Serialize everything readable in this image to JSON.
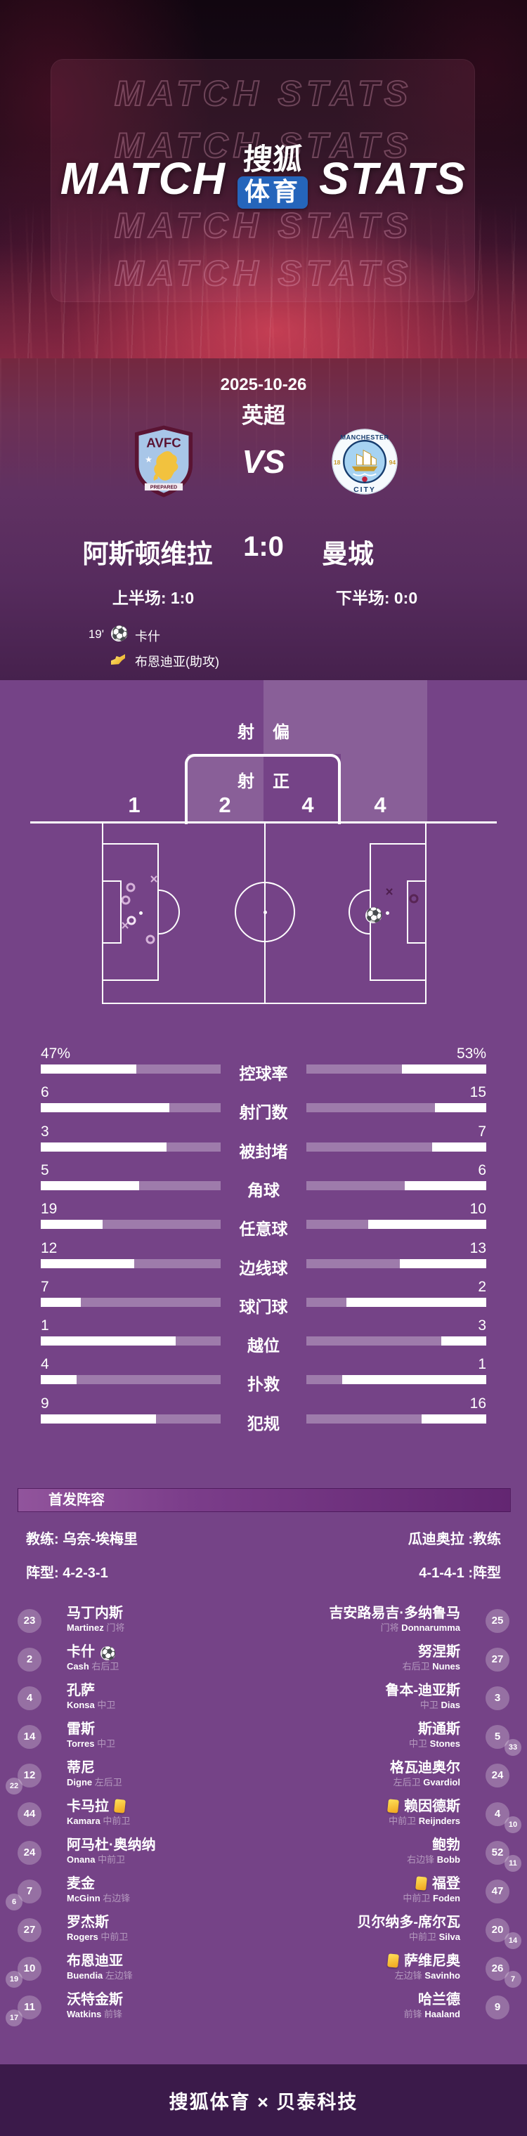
{
  "hero": {
    "watermark": "MATCH STATS",
    "title_left": "MATCH",
    "title_right": "STATS",
    "logo_top": "搜狐",
    "logo_bottom": "体育"
  },
  "match": {
    "date": "2025-10-26",
    "league": "英超",
    "vs": "VS",
    "home_name": "阿斯顿维拉",
    "away_name": "曼城",
    "score": "1:0",
    "half1": "上半场: 1:0",
    "half2": "下半场: 0:0",
    "home_badge": {
      "abbr": "AVFC",
      "banner": "PREPARED"
    },
    "away_badge": {
      "top": "MANCHESTER",
      "bottom": "CITY",
      "year_left": "18",
      "year_right": "94"
    },
    "events": [
      {
        "minute": "19'",
        "icon": "football",
        "player": "卡什"
      },
      {
        "minute": "",
        "icon": "assist-boot",
        "player": "布恩迪亚(助攻)"
      }
    ]
  },
  "shot_map": {
    "off_target_label": "射偏",
    "on_target_label": "射正",
    "home_off": 1,
    "home_on": 2,
    "away_on": 4,
    "away_off": 4,
    "markers": [
      {
        "type": "x",
        "x": 219,
        "y": 1252,
        "tone": "light"
      },
      {
        "type": "o",
        "x": 186,
        "y": 1263,
        "tone": "light"
      },
      {
        "type": "o",
        "x": 179,
        "y": 1281,
        "tone": "light"
      },
      {
        "type": "o",
        "x": 187,
        "y": 1310,
        "tone": "bright"
      },
      {
        "type": "x",
        "x": 178,
        "y": 1318,
        "tone": "light"
      },
      {
        "type": "o",
        "x": 214,
        "y": 1337,
        "tone": "light"
      },
      {
        "type": "x",
        "x": 554,
        "y": 1270,
        "tone": "dark"
      },
      {
        "type": "o",
        "x": 589,
        "y": 1279,
        "tone": "dark"
      },
      {
        "type": "ball",
        "x": 531,
        "y": 1303,
        "tone": ""
      }
    ]
  },
  "chart_data": {
    "type": "bar",
    "title": "比赛技术统计",
    "categories": [
      "控球率",
      "射门数",
      "被封堵",
      "角球",
      "任意球",
      "边线球",
      "球门球",
      "越位",
      "扑救",
      "犯规"
    ],
    "series": [
      {
        "name": "阿斯顿维拉",
        "values": [
          47,
          6,
          3,
          5,
          19,
          12,
          7,
          1,
          4,
          9
        ]
      },
      {
        "name": "曼城",
        "values": [
          53,
          15,
          7,
          6,
          10,
          13,
          2,
          3,
          1,
          16
        ]
      }
    ]
  },
  "stats": [
    {
      "label": "控球率",
      "home": "47%",
      "away": "53%"
    },
    {
      "label": "射门数",
      "home": "6",
      "away": "15"
    },
    {
      "label": "被封堵",
      "home": "3",
      "away": "7"
    },
    {
      "label": "角球",
      "home": "5",
      "away": "6"
    },
    {
      "label": "任意球",
      "home": "19",
      "away": "10"
    },
    {
      "label": "边线球",
      "home": "12",
      "away": "13"
    },
    {
      "label": "球门球",
      "home": "7",
      "away": "2"
    },
    {
      "label": "越位",
      "home": "1",
      "away": "3"
    },
    {
      "label": "扑救",
      "home": "4",
      "away": "1"
    },
    {
      "label": "犯规",
      "home": "9",
      "away": "16"
    }
  ],
  "lineup": {
    "header": "首发阵容",
    "coach_home": "教练: 乌奈-埃梅里",
    "coach_away": "瓜迪奥拉 :教练",
    "formation_home": "阵型: 4-2-3-1",
    "formation_away": "4-1-4-1 :阵型",
    "home": [
      {
        "num": "23",
        "zh": "马丁内斯",
        "en": "Martinez",
        "pos": "门将"
      },
      {
        "num": "2",
        "zh": "卡什",
        "en": "Cash",
        "pos": "右后卫",
        "goal": true
      },
      {
        "num": "4",
        "zh": "孔萨",
        "en": "Konsa",
        "pos": "中卫"
      },
      {
        "num": "14",
        "zh": "雷斯",
        "en": "Torres",
        "pos": "中卫"
      },
      {
        "num": "12",
        "sub": "22",
        "zh": "蒂尼",
        "en": "Digne",
        "pos": "左后卫"
      },
      {
        "num": "44",
        "zh": "卡马拉",
        "en": "Kamara",
        "pos": "中前卫",
        "yellow": true
      },
      {
        "num": "24",
        "zh": "阿马杜·奥纳纳",
        "en": "Onana",
        "pos": "中前卫"
      },
      {
        "num": "7",
        "sub": "6",
        "zh": "麦金",
        "en": "McGinn",
        "pos": "右边锋"
      },
      {
        "num": "27",
        "zh": "罗杰斯",
        "en": "Rogers",
        "pos": "中前卫"
      },
      {
        "num": "10",
        "sub": "19",
        "zh": "布恩迪亚",
        "en": "Buendia",
        "pos": "左边锋"
      },
      {
        "num": "11",
        "sub": "17",
        "zh": "沃特金斯",
        "en": "Watkins",
        "pos": "前锋"
      }
    ],
    "away": [
      {
        "num": "25",
        "zh": "吉安路易吉·多纳鲁马",
        "en": "Donnarumma",
        "pos": "门将"
      },
      {
        "num": "27",
        "zh": "努涅斯",
        "en": "Nunes",
        "pos": "右后卫"
      },
      {
        "num": "3",
        "zh": "鲁本-迪亚斯",
        "en": "Dias",
        "pos": "中卫"
      },
      {
        "num": "5",
        "sub": "33",
        "zh": "斯通斯",
        "en": "Stones",
        "pos": "中卫"
      },
      {
        "num": "24",
        "zh": "格瓦迪奥尔",
        "en": "Gvardiol",
        "pos": "左后卫"
      },
      {
        "num": "4",
        "sub": "10",
        "zh": "赖因德斯",
        "en": "Reijnders",
        "pos": "中前卫",
        "yellow": true
      },
      {
        "num": "52",
        "sub": "11",
        "zh": "鲍勃",
        "en": "Bobb",
        "pos": "右边锋"
      },
      {
        "num": "47",
        "zh": "福登",
        "en": "Foden",
        "pos": "中前卫",
        "yellow": true
      },
      {
        "num": "20",
        "sub": "14",
        "zh": "贝尔纳多-席尔瓦",
        "en": "Silva",
        "pos": "中前卫"
      },
      {
        "num": "26",
        "sub": "7",
        "zh": "萨维尼奥",
        "en": "Savinho",
        "pos": "左边锋",
        "yellow": true
      },
      {
        "num": "9",
        "zh": "哈兰德",
        "en": "Haaland",
        "pos": "前锋"
      }
    ]
  },
  "footer": {
    "text": "搜狐体育 × 贝泰科技"
  },
  "colors": {
    "section_bg": "#754387",
    "footer_bg": "#3b1a4a",
    "bar_white": "#ffffff",
    "bar_purple": "rgba(255,255,255,0.3)",
    "logo_blue": "#2565bb",
    "villa_claret": "#5a1433",
    "villa_blue": "#a8c6e8",
    "city_blue": "#a7d3f2",
    "city_navy": "#163c6e",
    "yellow_card": "#f5c518"
  }
}
